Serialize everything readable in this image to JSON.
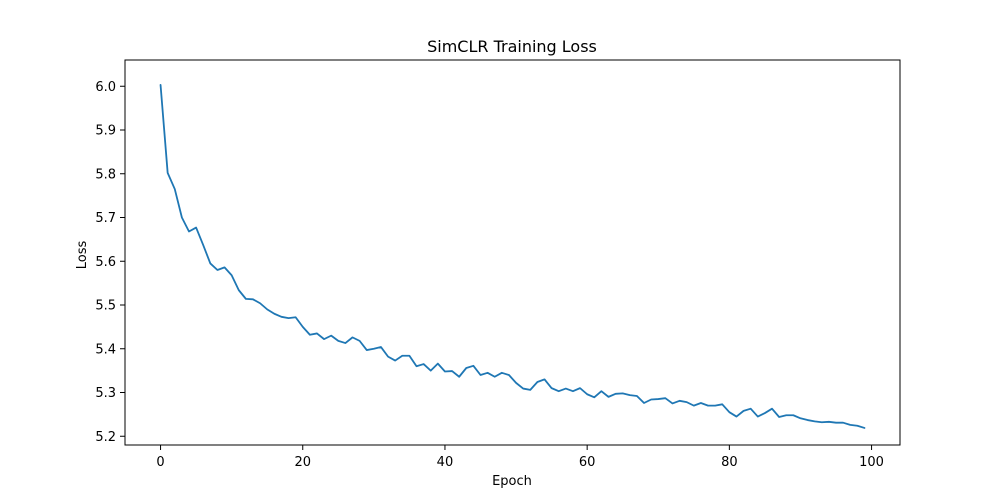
{
  "chart_data": {
    "type": "line",
    "title": "SimCLR Training Loss",
    "xlabel": "Epoch",
    "ylabel": "Loss",
    "xlim": [
      -5,
      104
    ],
    "ylim": [
      5.18,
      6.06
    ],
    "grid": false,
    "legend": "none",
    "xticks": [
      0,
      20,
      40,
      60,
      80,
      100
    ],
    "yticks": [
      5.2,
      5.3,
      5.4,
      5.5,
      5.6,
      5.7,
      5.8,
      5.9,
      6.0
    ],
    "x_tick_labels": [
      "0",
      "20",
      "40",
      "60",
      "80",
      "100"
    ],
    "y_tick_labels": [
      "5.2",
      "5.3",
      "5.4",
      "5.5",
      "5.6",
      "5.7",
      "5.8",
      "5.9",
      "6.0"
    ],
    "colors": {
      "series": "#1f77b4"
    },
    "series": [
      {
        "x": [
          0,
          1,
          2,
          3,
          4,
          5,
          6,
          7,
          8,
          9,
          10,
          11,
          12,
          13,
          14,
          15,
          16,
          17,
          18,
          19,
          20,
          21,
          22,
          23,
          24,
          25,
          26,
          27,
          28,
          29,
          30,
          31,
          32,
          33,
          34,
          35,
          36,
          37,
          38,
          39,
          40,
          41,
          42,
          43,
          44,
          45,
          46,
          47,
          48,
          49,
          50,
          51,
          52,
          53,
          54,
          55,
          56,
          57,
          58,
          59,
          60,
          61,
          62,
          63,
          64,
          65,
          66,
          67,
          68,
          69,
          70,
          71,
          72,
          73,
          74,
          75,
          76,
          77,
          78,
          79,
          80,
          81,
          82,
          83,
          84,
          85,
          86,
          87,
          88,
          89,
          90,
          91,
          92,
          93,
          94,
          95,
          96,
          97,
          98,
          99
        ],
        "values": [
          6.003,
          5.802,
          5.765,
          5.7,
          5.668,
          5.677,
          5.637,
          5.595,
          5.58,
          5.586,
          5.568,
          5.534,
          5.514,
          5.513,
          5.504,
          5.49,
          5.48,
          5.473,
          5.47,
          5.472,
          5.45,
          5.432,
          5.435,
          5.422,
          5.43,
          5.418,
          5.413,
          5.426,
          5.418,
          5.397,
          5.4,
          5.404,
          5.382,
          5.373,
          5.384,
          5.384,
          5.36,
          5.365,
          5.35,
          5.366,
          5.348,
          5.349,
          5.336,
          5.356,
          5.361,
          5.34,
          5.345,
          5.336,
          5.345,
          5.34,
          5.322,
          5.309,
          5.306,
          5.324,
          5.33,
          5.31,
          5.303,
          5.309,
          5.303,
          5.31,
          5.296,
          5.289,
          5.303,
          5.29,
          5.297,
          5.298,
          5.294,
          5.292,
          5.276,
          5.284,
          5.285,
          5.287,
          5.275,
          5.281,
          5.278,
          5.27,
          5.276,
          5.27,
          5.27,
          5.273,
          5.255,
          5.245,
          5.258,
          5.263,
          5.245,
          5.253,
          5.263,
          5.244,
          5.248,
          5.248,
          5.241,
          5.237,
          5.234,
          5.232,
          5.233,
          5.231,
          5.231,
          5.226,
          5.224,
          5.219
        ]
      }
    ]
  }
}
